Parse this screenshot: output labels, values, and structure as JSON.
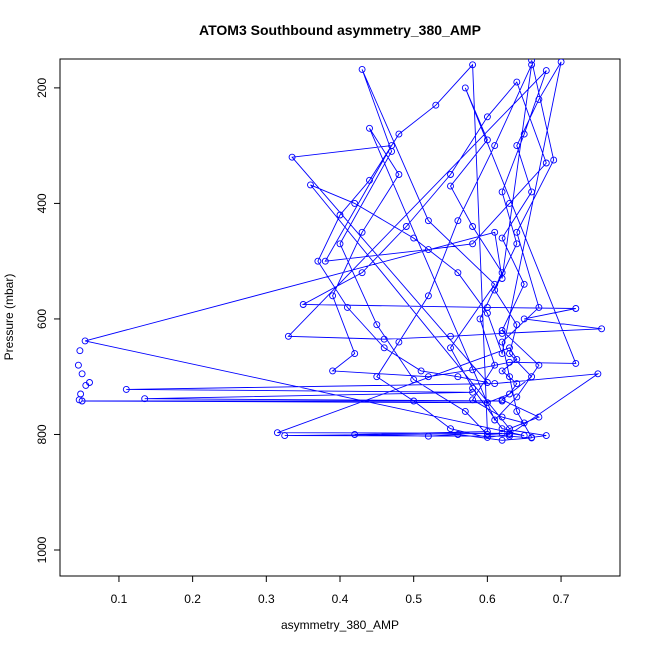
{
  "chart_data": {
    "type": "scatter",
    "title": "ATOM3 Southbound asymmetry_380_AMP",
    "xlabel": "asymmetry_380_AMP",
    "ylabel": "Pressure (mbar)",
    "xlim": [
      0.02,
      0.78
    ],
    "ylim": [
      1045,
      150
    ],
    "y_reversed": true,
    "x_ticks": [
      0.1,
      0.2,
      0.3,
      0.4,
      0.5,
      0.6,
      0.7
    ],
    "x_tick_labels": [
      "0.1",
      "0.2",
      "0.3",
      "0.4",
      "0.5",
      "0.6",
      "0.7"
    ],
    "y_ticks": [
      200,
      400,
      600,
      800,
      1000
    ],
    "y_tick_labels": [
      "200",
      "400",
      "600",
      "800",
      "1000"
    ],
    "grid": false,
    "series": [
      {
        "color": "#0000ff",
        "marker": "open-circle",
        "connected": true,
        "points": [
          [
            0.66,
            152
          ],
          [
            0.69,
            325
          ],
          [
            0.64,
            450
          ],
          [
            0.67,
            580
          ],
          [
            0.62,
            640
          ],
          [
            0.63,
            700
          ],
          [
            0.64,
            760
          ],
          [
            0.66,
            805
          ],
          [
            0.68,
            802
          ],
          [
            0.62,
            790
          ],
          [
            0.58,
            720
          ],
          [
            0.55,
            650
          ],
          [
            0.61,
            540
          ],
          [
            0.52,
            430
          ],
          [
            0.43,
            168
          ],
          [
            0.47,
            310
          ],
          [
            0.4,
            470
          ],
          [
            0.45,
            610
          ],
          [
            0.5,
            705
          ],
          [
            0.57,
            760
          ],
          [
            0.6,
            800
          ],
          [
            0.63,
            798
          ],
          [
            0.65,
            802
          ],
          [
            0.054,
            638
          ],
          [
            0.61,
            450
          ],
          [
            0.62,
            530
          ],
          [
            0.66,
            160
          ],
          [
            0.61,
            300
          ],
          [
            0.56,
            430
          ],
          [
            0.52,
            560
          ],
          [
            0.48,
            640
          ],
          [
            0.45,
            700
          ],
          [
            0.5,
            742
          ],
          [
            0.55,
            790
          ],
          [
            0.6,
            805
          ],
          [
            0.63,
            800
          ],
          [
            0.75,
            695
          ],
          [
            0.61,
            712
          ],
          [
            0.11,
            722
          ],
          [
            0.58,
            727
          ],
          [
            0.135,
            738
          ],
          [
            0.62,
            742
          ],
          [
            0.05,
            742
          ],
          [
            0.6,
            745
          ],
          [
            0.63,
            730
          ],
          [
            0.64,
            712
          ],
          [
            0.62,
            690
          ],
          [
            0.64,
            670
          ],
          [
            0.63,
            650
          ],
          [
            0.315,
            797
          ],
          [
            0.62,
            798
          ],
          [
            0.325,
            802
          ],
          [
            0.63,
            803
          ],
          [
            0.66,
            806
          ],
          [
            0.62,
            810
          ],
          [
            0.56,
            800
          ],
          [
            0.52,
            803
          ],
          [
            0.42,
            800
          ],
          [
            0.6,
            795
          ],
          [
            0.58,
            160
          ],
          [
            0.53,
            230
          ],
          [
            0.48,
            280
          ],
          [
            0.44,
            360
          ],
          [
            0.4,
            420
          ],
          [
            0.37,
            500
          ],
          [
            0.41,
            580
          ],
          [
            0.46,
            650
          ],
          [
            0.51,
            690
          ],
          [
            0.56,
            700
          ],
          [
            0.6,
            710
          ],
          [
            0.335,
            320
          ],
          [
            0.47,
            300
          ],
          [
            0.38,
            500
          ],
          [
            0.52,
            480
          ],
          [
            0.58,
            470
          ],
          [
            0.63,
            400
          ],
          [
            0.68,
            330
          ],
          [
            0.64,
            190
          ],
          [
            0.6,
            250
          ],
          [
            0.55,
            350
          ],
          [
            0.49,
            440
          ],
          [
            0.43,
            520
          ],
          [
            0.35,
            575
          ],
          [
            0.6,
            580
          ],
          [
            0.72,
            582
          ],
          [
            0.65,
            600
          ],
          [
            0.755,
            617
          ],
          [
            0.62,
            625
          ],
          [
            0.55,
            630
          ],
          [
            0.46,
            635
          ],
          [
            0.33,
            630
          ],
          [
            0.68,
            170
          ],
          [
            0.65,
            280
          ],
          [
            0.62,
            380
          ],
          [
            0.64,
            470
          ],
          [
            0.61,
            550
          ],
          [
            0.64,
            610
          ],
          [
            0.63,
            660
          ],
          [
            0.66,
            700
          ],
          [
            0.62,
            740
          ],
          [
            0.67,
            770
          ],
          [
            0.63,
            790
          ],
          [
            0.36,
            368
          ],
          [
            0.42,
            400
          ],
          [
            0.5,
            460
          ],
          [
            0.56,
            520
          ],
          [
            0.6,
            590
          ],
          [
            0.62,
            660
          ],
          [
            0.7,
            155
          ],
          [
            0.67,
            220
          ],
          [
            0.64,
            300
          ],
          [
            0.66,
            380
          ],
          [
            0.62,
            460
          ],
          [
            0.65,
            540
          ],
          [
            0.62,
            620
          ],
          [
            0.67,
            680
          ],
          [
            0.64,
            735
          ],
          [
            0.61,
            775
          ],
          [
            0.44,
            270
          ],
          [
            0.48,
            350
          ],
          [
            0.43,
            450
          ],
          [
            0.39,
            560
          ],
          [
            0.42,
            660
          ],
          [
            0.39,
            690
          ],
          [
            0.52,
            700
          ],
          [
            0.58,
            688
          ],
          [
            0.63,
            675
          ],
          [
            0.72,
            677
          ],
          [
            0.57,
            200
          ],
          [
            0.6,
            290
          ],
          [
            0.55,
            370
          ],
          [
            0.58,
            440
          ],
          [
            0.62,
            520
          ],
          [
            0.59,
            600
          ],
          [
            0.61,
            680
          ],
          [
            0.58,
            740
          ],
          [
            0.62,
            770
          ],
          [
            0.65,
            780
          ]
        ]
      }
    ],
    "edge_points": [
      [
        0.047,
        655
      ],
      [
        0.045,
        680
      ],
      [
        0.05,
        695
      ],
      [
        0.055,
        715
      ],
      [
        0.06,
        710
      ],
      [
        0.048,
        730
      ],
      [
        0.046,
        740
      ]
    ]
  }
}
